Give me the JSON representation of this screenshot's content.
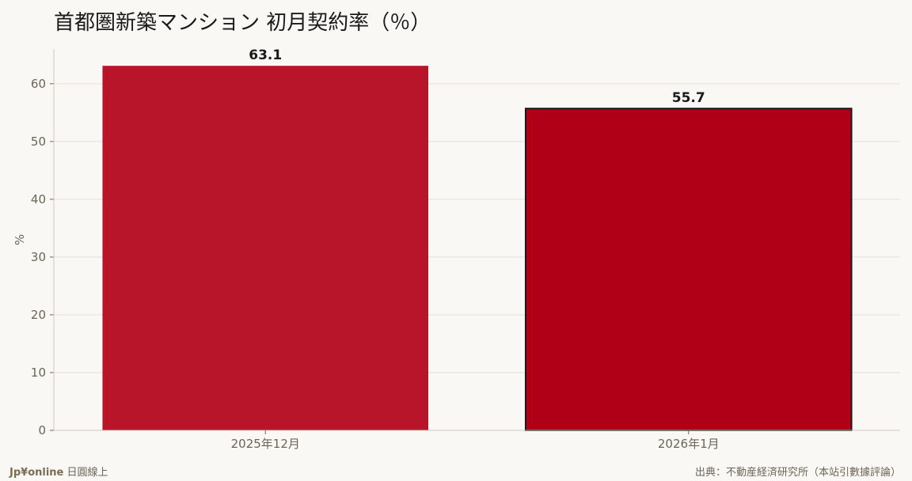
{
  "title": "首都圏新築マンション 初月契約率（％）",
  "footer": {
    "brand": "Jp¥online",
    "brand_suffix": "日圓線上",
    "source": "出典：不動産経済研究所（本站引數據評論）"
  },
  "chart_data": {
    "type": "bar",
    "title": "首都圏新築マンション 初月契約率（％）",
    "categories": [
      "2025年12月",
      "2026年1月"
    ],
    "values": [
      63.1,
      55.7
    ],
    "value_labels": [
      "63.1",
      "55.7"
    ],
    "xlabel": "",
    "ylabel": "%",
    "ylim": [
      0,
      66
    ],
    "yticks": [
      0,
      10,
      20,
      30,
      40,
      50,
      60
    ],
    "grid": true,
    "colors": [
      "#b8152b",
      "#b00018"
    ],
    "highlight_index": 1,
    "highlight_edge_color": "#1a1a1a",
    "axis_color": "#6b6458",
    "grid_color": "#e3ded6"
  }
}
